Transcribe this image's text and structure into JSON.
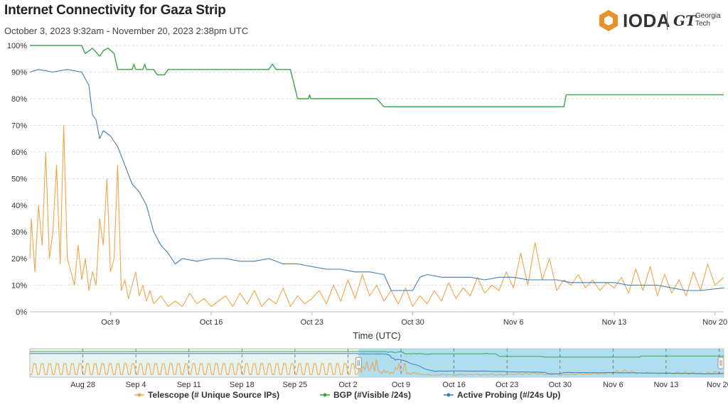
{
  "header": {
    "title": "Internet Connectivity for Gaza Strip",
    "subtitle": "October 3, 2023 9:32am - November 20, 2023 2:38pm UTC"
  },
  "logo": {
    "ioda_text": "IODA",
    "gt_mark": "GT",
    "gt_line1": "Georgia",
    "gt_line2": "Tech"
  },
  "colors": {
    "telescope": "#f0a44a",
    "bgp": "#3aa647",
    "active": "#3d7fb5",
    "grid": "#dddddd",
    "nav_selected": "#a9dcee",
    "nav_unselected": "#e8f3ee"
  },
  "chart_data": {
    "type": "line",
    "title": "Internet Connectivity for Gaza Strip",
    "xlabel": "Time (UTC)",
    "ylabel": "",
    "x_start": "2023-10-03T09:32",
    "x_end": "2023-11-20T14:38",
    "ylim": [
      0,
      100
    ],
    "y_ticks": [
      "0%",
      "10%",
      "20%",
      "30%",
      "40%",
      "50%",
      "60%",
      "70%",
      "80%",
      "90%",
      "100%"
    ],
    "x_ticks": [
      {
        "label": "Oct 9",
        "date": "2023-10-09"
      },
      {
        "label": "Oct 16",
        "date": "2023-10-16"
      },
      {
        "label": "Oct 23",
        "date": "2023-10-23"
      },
      {
        "label": "Oct 30",
        "date": "2023-10-30"
      },
      {
        "label": "Nov 6",
        "date": "2023-11-06"
      },
      {
        "label": "Nov 13",
        "date": "2023-11-13"
      },
      {
        "label": "Nov 20",
        "date": "2023-11-20"
      }
    ],
    "grid": true,
    "legend_position": "bottom",
    "series": [
      {
        "name": "BGP (#Visible /24s)",
        "key": "bgp",
        "points": [
          [
            "2023-10-03T09:32",
            100
          ],
          [
            "2023-10-07T00:00",
            100
          ],
          [
            "2023-10-07T06:00",
            97
          ],
          [
            "2023-10-07T18:00",
            99
          ],
          [
            "2023-10-08T06:00",
            96
          ],
          [
            "2023-10-08T12:00",
            98
          ],
          [
            "2023-10-08T20:00",
            99
          ],
          [
            "2023-10-09T06:00",
            97
          ],
          [
            "2023-10-09T12:00",
            91
          ],
          [
            "2023-10-10T12:00",
            91
          ],
          [
            "2023-10-10T15:00",
            93
          ],
          [
            "2023-10-10T18:00",
            91
          ],
          [
            "2023-10-11T06:00",
            91
          ],
          [
            "2023-10-11T09:00",
            93
          ],
          [
            "2023-10-11T12:00",
            91
          ],
          [
            "2023-10-12T00:00",
            91
          ],
          [
            "2023-10-12T06:00",
            89
          ],
          [
            "2023-10-12T18:00",
            89
          ],
          [
            "2023-10-13T00:00",
            91
          ],
          [
            "2023-10-20T00:00",
            91
          ],
          [
            "2023-10-20T06:00",
            93
          ],
          [
            "2023-10-20T12:00",
            91
          ],
          [
            "2023-10-21T12:00",
            91
          ],
          [
            "2023-10-22T00:00",
            80
          ],
          [
            "2023-10-22T18:00",
            80
          ],
          [
            "2023-10-22T20:00",
            81.5
          ],
          [
            "2023-10-22T22:00",
            80
          ],
          [
            "2023-10-27T12:00",
            80
          ],
          [
            "2023-10-28T00:00",
            77
          ],
          [
            "2023-11-09T00:00",
            77
          ],
          [
            "2023-11-09T12:00",
            77
          ],
          [
            "2023-11-09T16:00",
            81.5
          ],
          [
            "2023-11-20T14:38",
            81.5
          ]
        ]
      },
      {
        "name": "Active Probing (#/24s Up)",
        "key": "active",
        "points": [
          [
            "2023-10-03T09:32",
            90
          ],
          [
            "2023-10-04T00:00",
            91
          ],
          [
            "2023-10-05T00:00",
            90
          ],
          [
            "2023-10-06T00:00",
            91
          ],
          [
            "2023-10-07T00:00",
            90
          ],
          [
            "2023-10-07T12:00",
            85
          ],
          [
            "2023-10-07T18:00",
            74
          ],
          [
            "2023-10-08T00:00",
            72
          ],
          [
            "2023-10-08T06:00",
            65
          ],
          [
            "2023-10-08T12:00",
            68
          ],
          [
            "2023-10-09T00:00",
            66
          ],
          [
            "2023-10-09T12:00",
            62
          ],
          [
            "2023-10-10T00:00",
            55
          ],
          [
            "2023-10-10T12:00",
            48
          ],
          [
            "2023-10-11T00:00",
            45
          ],
          [
            "2023-10-11T12:00",
            40
          ],
          [
            "2023-10-12T00:00",
            30
          ],
          [
            "2023-10-12T12:00",
            25
          ],
          [
            "2023-10-13T00:00",
            22
          ],
          [
            "2023-10-13T12:00",
            18
          ],
          [
            "2023-10-14T00:00",
            20
          ],
          [
            "2023-10-15T00:00",
            19
          ],
          [
            "2023-10-16T00:00",
            20
          ],
          [
            "2023-10-17T00:00",
            20
          ],
          [
            "2023-10-18T00:00",
            19
          ],
          [
            "2023-10-19T00:00",
            19
          ],
          [
            "2023-10-20T00:00",
            20
          ],
          [
            "2023-10-21T00:00",
            18
          ],
          [
            "2023-10-22T00:00",
            18
          ],
          [
            "2023-10-23T00:00",
            17
          ],
          [
            "2023-10-24T00:00",
            16
          ],
          [
            "2023-10-25T00:00",
            16
          ],
          [
            "2023-10-26T00:00",
            15
          ],
          [
            "2023-10-27T00:00",
            15
          ],
          [
            "2023-10-28T00:00",
            14
          ],
          [
            "2023-10-28T12:00",
            8
          ],
          [
            "2023-10-29T00:00",
            8
          ],
          [
            "2023-10-30T00:00",
            8
          ],
          [
            "2023-10-30T12:00",
            13
          ],
          [
            "2023-10-31T00:00",
            14
          ],
          [
            "2023-11-01T00:00",
            13
          ],
          [
            "2023-11-02T00:00",
            13
          ],
          [
            "2023-11-03T00:00",
            13
          ],
          [
            "2023-11-04T00:00",
            12
          ],
          [
            "2023-11-05T00:00",
            13
          ],
          [
            "2023-11-06T00:00",
            13
          ],
          [
            "2023-11-07T00:00",
            12
          ],
          [
            "2023-11-08T00:00",
            12
          ],
          [
            "2023-11-09T00:00",
            12
          ],
          [
            "2023-11-10T00:00",
            11
          ],
          [
            "2023-11-11T00:00",
            11
          ],
          [
            "2023-11-12T00:00",
            11
          ],
          [
            "2023-11-13T00:00",
            11
          ],
          [
            "2023-11-14T00:00",
            10
          ],
          [
            "2023-11-15T00:00",
            10
          ],
          [
            "2023-11-16T00:00",
            10
          ],
          [
            "2023-11-17T00:00",
            9
          ],
          [
            "2023-11-18T00:00",
            8
          ],
          [
            "2023-11-19T00:00",
            8
          ],
          [
            "2023-11-20T14:38",
            9
          ]
        ]
      },
      {
        "name": "Telescope (# Unique Source IPs)",
        "key": "telescope",
        "points": [
          [
            "2023-10-03T09:32",
            20
          ],
          [
            "2023-10-03T12:00",
            35
          ],
          [
            "2023-10-03T18:00",
            15
          ],
          [
            "2023-10-04T00:00",
            40
          ],
          [
            "2023-10-04T06:00",
            25
          ],
          [
            "2023-10-04T12:00",
            60
          ],
          [
            "2023-10-04T18:00",
            20
          ],
          [
            "2023-10-05T00:00",
            30
          ],
          [
            "2023-10-05T06:00",
            55
          ],
          [
            "2023-10-05T12:00",
            18
          ],
          [
            "2023-10-05T18:00",
            70
          ],
          [
            "2023-10-06T00:00",
            20
          ],
          [
            "2023-10-06T06:00",
            15
          ],
          [
            "2023-10-06T12:00",
            10
          ],
          [
            "2023-10-06T18:00",
            25
          ],
          [
            "2023-10-07T00:00",
            12
          ],
          [
            "2023-10-07T06:00",
            20
          ],
          [
            "2023-10-07T12:00",
            8
          ],
          [
            "2023-10-07T18:00",
            15
          ],
          [
            "2023-10-08T00:00",
            10
          ],
          [
            "2023-10-08T06:00",
            35
          ],
          [
            "2023-10-08T12:00",
            25
          ],
          [
            "2023-10-08T18:00",
            50
          ],
          [
            "2023-10-09T00:00",
            15
          ],
          [
            "2023-10-09T06:00",
            20
          ],
          [
            "2023-10-09T12:00",
            55
          ],
          [
            "2023-10-09T18:00",
            8
          ],
          [
            "2023-10-10T00:00",
            12
          ],
          [
            "2023-10-10T06:00",
            5
          ],
          [
            "2023-10-10T12:00",
            10
          ],
          [
            "2023-10-10T18:00",
            15
          ],
          [
            "2023-10-11T00:00",
            6
          ],
          [
            "2023-10-11T06:00",
            10
          ],
          [
            "2023-10-11T12:00",
            4
          ],
          [
            "2023-10-11T18:00",
            8
          ],
          [
            "2023-10-12T00:00",
            3
          ],
          [
            "2023-10-12T12:00",
            6
          ],
          [
            "2023-10-13T00:00",
            2
          ],
          [
            "2023-10-13T12:00",
            4
          ],
          [
            "2023-10-14T00:00",
            2
          ],
          [
            "2023-10-14T12:00",
            7
          ],
          [
            "2023-10-15T00:00",
            3
          ],
          [
            "2023-10-15T12:00",
            5
          ],
          [
            "2023-10-16T00:00",
            2
          ],
          [
            "2023-10-16T12:00",
            4
          ],
          [
            "2023-10-17T00:00",
            6
          ],
          [
            "2023-10-17T12:00",
            2
          ],
          [
            "2023-10-18T00:00",
            7
          ],
          [
            "2023-10-18T12:00",
            3
          ],
          [
            "2023-10-19T00:00",
            8
          ],
          [
            "2023-10-19T12:00",
            2
          ],
          [
            "2023-10-20T00:00",
            5
          ],
          [
            "2023-10-20T12:00",
            3
          ],
          [
            "2023-10-21T00:00",
            9
          ],
          [
            "2023-10-21T12:00",
            2
          ],
          [
            "2023-10-22T00:00",
            6
          ],
          [
            "2023-10-22T12:00",
            3
          ],
          [
            "2023-10-23T00:00",
            5
          ],
          [
            "2023-10-23T12:00",
            8
          ],
          [
            "2023-10-24T00:00",
            3
          ],
          [
            "2023-10-24T12:00",
            10
          ],
          [
            "2023-10-25T00:00",
            4
          ],
          [
            "2023-10-25T12:00",
            12
          ],
          [
            "2023-10-26T00:00",
            5
          ],
          [
            "2023-10-26T12:00",
            14
          ],
          [
            "2023-10-27T00:00",
            6
          ],
          [
            "2023-10-27T12:00",
            10
          ],
          [
            "2023-10-28T00:00",
            4
          ],
          [
            "2023-10-28T12:00",
            8
          ],
          [
            "2023-10-29T00:00",
            3
          ],
          [
            "2023-10-29T12:00",
            9
          ],
          [
            "2023-10-30T00:00",
            2
          ],
          [
            "2023-10-30T12:00",
            6
          ],
          [
            "2023-10-31T00:00",
            3
          ],
          [
            "2023-10-31T12:00",
            8
          ],
          [
            "2023-11-01T00:00",
            4
          ],
          [
            "2023-11-01T12:00",
            11
          ],
          [
            "2023-11-02T00:00",
            5
          ],
          [
            "2023-11-02T12:00",
            9
          ],
          [
            "2023-11-03T00:00",
            6
          ],
          [
            "2023-11-03T12:00",
            13
          ],
          [
            "2023-11-04T00:00",
            7
          ],
          [
            "2023-11-04T12:00",
            10
          ],
          [
            "2023-11-05T00:00",
            8
          ],
          [
            "2023-11-05T12:00",
            15
          ],
          [
            "2023-11-06T00:00",
            9
          ],
          [
            "2023-11-06T12:00",
            22
          ],
          [
            "2023-11-07T00:00",
            10
          ],
          [
            "2023-11-07T12:00",
            26
          ],
          [
            "2023-11-08T00:00",
            12
          ],
          [
            "2023-11-08T12:00",
            20
          ],
          [
            "2023-11-09T00:00",
            8
          ],
          [
            "2023-11-09T12:00",
            12
          ],
          [
            "2023-11-10T00:00",
            10
          ],
          [
            "2023-11-10T12:00",
            14
          ],
          [
            "2023-11-11T00:00",
            9
          ],
          [
            "2023-11-11T12:00",
            12
          ],
          [
            "2023-11-12T00:00",
            8
          ],
          [
            "2023-11-12T12:00",
            11
          ],
          [
            "2023-11-13T00:00",
            9
          ],
          [
            "2023-11-13T12:00",
            13
          ],
          [
            "2023-11-14T00:00",
            7
          ],
          [
            "2023-11-14T12:00",
            16
          ],
          [
            "2023-11-15T00:00",
            8
          ],
          [
            "2023-11-15T12:00",
            17
          ],
          [
            "2023-11-16T00:00",
            6
          ],
          [
            "2023-11-16T12:00",
            14
          ],
          [
            "2023-11-17T00:00",
            7
          ],
          [
            "2023-11-17T12:00",
            12
          ],
          [
            "2023-11-18T00:00",
            6
          ],
          [
            "2023-11-18T12:00",
            15
          ],
          [
            "2023-11-19T00:00",
            8
          ],
          [
            "2023-11-19T12:00",
            18
          ],
          [
            "2023-11-20T00:00",
            10
          ],
          [
            "2023-11-20T14:38",
            13
          ]
        ]
      }
    ]
  },
  "navigator": {
    "x_start": "2023-08-21T00:00",
    "x_end": "2023-11-20T14:38",
    "selected_start": "2023-10-03T09:32",
    "selected_end": "2023-11-20T14:38",
    "x_ticks": [
      {
        "label": "Aug 28",
        "date": "2023-08-28"
      },
      {
        "label": "Sep 4",
        "date": "2023-09-04"
      },
      {
        "label": "Sep 11",
        "date": "2023-09-11"
      },
      {
        "label": "Sep 18",
        "date": "2023-09-18"
      },
      {
        "label": "Sep 25",
        "date": "2023-09-25"
      },
      {
        "label": "Oct 2",
        "date": "2023-10-02"
      },
      {
        "label": "Oct 9",
        "date": "2023-10-09"
      },
      {
        "label": "Oct 16",
        "date": "2023-10-16"
      },
      {
        "label": "Oct 23",
        "date": "2023-10-23"
      },
      {
        "label": "Oct 30",
        "date": "2023-10-30"
      },
      {
        "label": "Nov 6",
        "date": "2023-11-06"
      },
      {
        "label": "Nov 13",
        "date": "2023-11-13"
      },
      {
        "label": "Nov 20",
        "date": "2023-11-20"
      }
    ]
  },
  "legend": [
    {
      "key": "telescope",
      "label": "Telescope (# Unique Source IPs)"
    },
    {
      "key": "bgp",
      "label": "BGP (#Visible /24s)"
    },
    {
      "key": "active",
      "label": "Active Probing (#/24s Up)"
    }
  ]
}
